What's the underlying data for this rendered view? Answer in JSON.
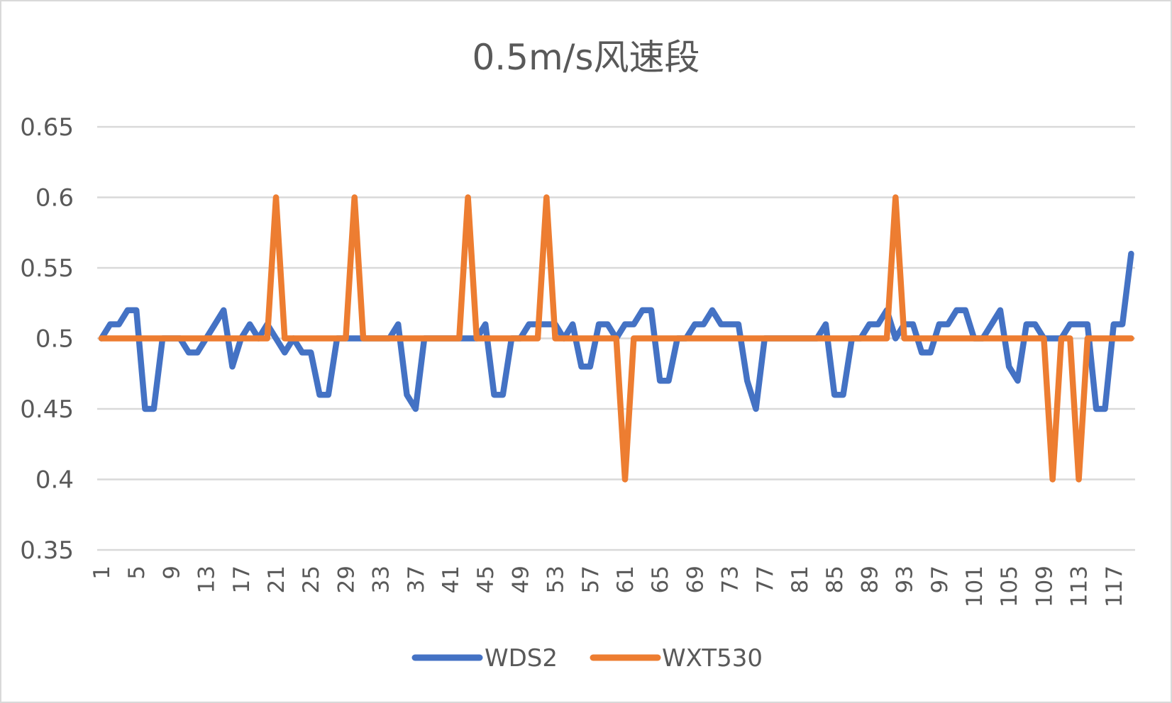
{
  "chart_data": {
    "type": "line",
    "title": "0.5m/s风速段",
    "xlabel": "",
    "ylabel": "",
    "ylim": [
      0.35,
      0.65
    ],
    "yticks": [
      0.35,
      0.4,
      0.45,
      0.5,
      0.55,
      0.6,
      0.65
    ],
    "ytick_labels": [
      "0.35",
      "0.4",
      "0.45",
      "0.5",
      "0.55",
      "0.6",
      "0.65"
    ],
    "x_start": 1,
    "x_end": 119,
    "xtick_labels": [
      "1",
      "5",
      "9",
      "13",
      "17",
      "21",
      "25",
      "29",
      "33",
      "37",
      "41",
      "45",
      "49",
      "53",
      "57",
      "61",
      "65",
      "69",
      "73",
      "77",
      "81",
      "85",
      "89",
      "93",
      "97",
      "101",
      "105",
      "109",
      "113",
      "117"
    ],
    "grid": true,
    "legend_position": "bottom",
    "series": [
      {
        "name": "WDS2",
        "color": "#4472c4",
        "values": [
          0.5,
          0.51,
          0.51,
          0.52,
          0.52,
          0.45,
          0.45,
          0.5,
          0.5,
          0.5,
          0.49,
          0.49,
          0.5,
          0.51,
          0.52,
          0.48,
          0.5,
          0.51,
          0.5,
          0.51,
          0.5,
          0.49,
          0.5,
          0.49,
          0.49,
          0.46,
          0.46,
          0.5,
          0.5,
          0.5,
          0.5,
          0.5,
          0.5,
          0.5,
          0.51,
          0.46,
          0.45,
          0.5,
          0.5,
          0.5,
          0.5,
          0.5,
          0.5,
          0.5,
          0.51,
          0.46,
          0.46,
          0.5,
          0.5,
          0.51,
          0.51,
          0.51,
          0.51,
          0.5,
          0.51,
          0.48,
          0.48,
          0.51,
          0.51,
          0.5,
          0.51,
          0.51,
          0.52,
          0.52,
          0.47,
          0.47,
          0.5,
          0.5,
          0.51,
          0.51,
          0.52,
          0.51,
          0.51,
          0.51,
          0.47,
          0.45,
          0.5,
          0.5,
          0.5,
          0.5,
          0.5,
          0.5,
          0.5,
          0.51,
          0.46,
          0.46,
          0.5,
          0.5,
          0.51,
          0.51,
          0.52,
          0.5,
          0.51,
          0.51,
          0.49,
          0.49,
          0.51,
          0.51,
          0.52,
          0.52,
          0.5,
          0.5,
          0.51,
          0.52,
          0.48,
          0.47,
          0.51,
          0.51,
          0.5,
          0.5,
          0.5,
          0.51,
          0.51,
          0.51,
          0.45,
          0.45,
          0.51,
          0.51,
          0.56
        ]
      },
      {
        "name": "WXT530",
        "color": "#ed7d31",
        "values": [
          0.5,
          0.5,
          0.5,
          0.5,
          0.5,
          0.5,
          0.5,
          0.5,
          0.5,
          0.5,
          0.5,
          0.5,
          0.5,
          0.5,
          0.5,
          0.5,
          0.5,
          0.5,
          0.5,
          0.5,
          0.6,
          0.5,
          0.5,
          0.5,
          0.5,
          0.5,
          0.5,
          0.5,
          0.5,
          0.6,
          0.5,
          0.5,
          0.5,
          0.5,
          0.5,
          0.5,
          0.5,
          0.5,
          0.5,
          0.5,
          0.5,
          0.5,
          0.6,
          0.5,
          0.5,
          0.5,
          0.5,
          0.5,
          0.5,
          0.5,
          0.5,
          0.6,
          0.5,
          0.5,
          0.5,
          0.5,
          0.5,
          0.5,
          0.5,
          0.5,
          0.4,
          0.5,
          0.5,
          0.5,
          0.5,
          0.5,
          0.5,
          0.5,
          0.5,
          0.5,
          0.5,
          0.5,
          0.5,
          0.5,
          0.5,
          0.5,
          0.5,
          0.5,
          0.5,
          0.5,
          0.5,
          0.5,
          0.5,
          0.5,
          0.5,
          0.5,
          0.5,
          0.5,
          0.5,
          0.5,
          0.5,
          0.6,
          0.5,
          0.5,
          0.5,
          0.5,
          0.5,
          0.5,
          0.5,
          0.5,
          0.5,
          0.5,
          0.5,
          0.5,
          0.5,
          0.5,
          0.5,
          0.5,
          0.5,
          0.4,
          0.5,
          0.5,
          0.4,
          0.5,
          0.5,
          0.5,
          0.5,
          0.5,
          0.5
        ]
      }
    ]
  },
  "legend": {
    "items": [
      {
        "label": "WDS2",
        "color": "#4472c4"
      },
      {
        "label": "WXT530",
        "color": "#ed7d31"
      }
    ]
  },
  "colors": {
    "gridline": "#d9d9d9",
    "text": "#595959",
    "border": "#d9d9d9"
  }
}
